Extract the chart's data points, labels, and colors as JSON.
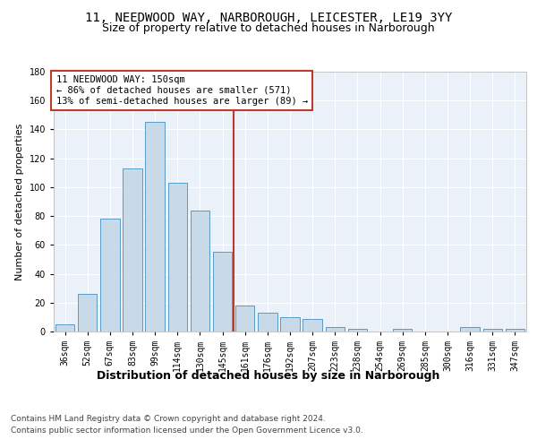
{
  "title": "11, NEEDWOOD WAY, NARBOROUGH, LEICESTER, LE19 3YY",
  "subtitle": "Size of property relative to detached houses in Narborough",
  "xlabel": "Distribution of detached houses by size in Narborough",
  "ylabel": "Number of detached properties",
  "bar_labels": [
    "36sqm",
    "52sqm",
    "67sqm",
    "83sqm",
    "99sqm",
    "114sqm",
    "130sqm",
    "145sqm",
    "161sqm",
    "176sqm",
    "192sqm",
    "207sqm",
    "223sqm",
    "238sqm",
    "254sqm",
    "269sqm",
    "285sqm",
    "300sqm",
    "316sqm",
    "331sqm",
    "347sqm"
  ],
  "bar_values": [
    5,
    26,
    78,
    113,
    145,
    103,
    84,
    55,
    18,
    13,
    10,
    9,
    3,
    2,
    0,
    2,
    0,
    0,
    3,
    2,
    2
  ],
  "bar_color": "#c8d9e8",
  "bar_edge_color": "#5a9ac8",
  "vline_x": 7.5,
  "vline_color": "#c0392b",
  "annotation_title": "11 NEEDWOOD WAY: 150sqm",
  "annotation_line1": "← 86% of detached houses are smaller (571)",
  "annotation_line2": "13% of semi-detached houses are larger (89) →",
  "annotation_box_color": "#c0392b",
  "ylim": [
    0,
    180
  ],
  "yticks": [
    0,
    20,
    40,
    60,
    80,
    100,
    120,
    140,
    160,
    180
  ],
  "footer1": "Contains HM Land Registry data © Crown copyright and database right 2024.",
  "footer2": "Contains public sector information licensed under the Open Government Licence v3.0.",
  "bg_color": "#eaf1f8",
  "fig_bg_color": "#ffffff",
  "title_fontsize": 10,
  "subtitle_fontsize": 9,
  "xlabel_fontsize": 9,
  "ylabel_fontsize": 8,
  "tick_fontsize": 7,
  "annotation_fontsize": 7.5,
  "footer_fontsize": 6.5
}
